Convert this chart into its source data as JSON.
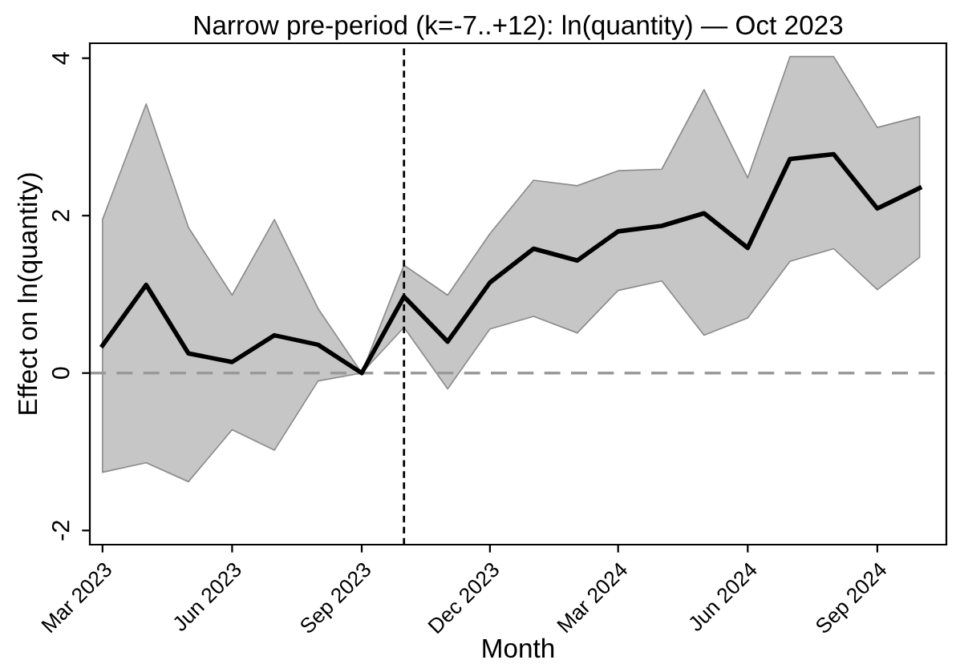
{
  "chart_data": {
    "type": "line",
    "title": "Narrow pre-period (k=-7..+12): ln(quantity) — Oct 2023",
    "xlabel": "Month",
    "ylabel": "Effect on ln(quantity)",
    "x": [
      "2023-03",
      "2023-04",
      "2023-05",
      "2023-06",
      "2023-07",
      "2023-08",
      "2023-09",
      "2023-10",
      "2023-11",
      "2023-12",
      "2024-01",
      "2024-02",
      "2024-03",
      "2024-04",
      "2024-05",
      "2024-06",
      "2024-07",
      "2024-08",
      "2024-09",
      "2024-10"
    ],
    "series": [
      {
        "color": "#000000",
        "values": [
          0.35,
          1.12,
          0.25,
          0.14,
          0.48,
          0.36,
          0,
          0.97,
          0.4,
          1.15,
          1.58,
          1.43,
          1.8,
          1.87,
          2.03,
          1.59,
          2.72,
          2.78,
          2.09,
          2.35
        ],
        "lower": [
          -1.26,
          -1.14,
          -1.38,
          -0.72,
          -0.98,
          -0.1,
          0,
          0.58,
          -0.2,
          0.56,
          0.72,
          0.51,
          1.05,
          1.17,
          0.48,
          0.7,
          1.42,
          1.58,
          1.06,
          1.47
        ],
        "upper": [
          1.95,
          3.42,
          1.85,
          0.99,
          1.95,
          0.82,
          0,
          1.37,
          0.99,
          1.77,
          2.45,
          2.38,
          2.57,
          2.59,
          3.6,
          2.48,
          4.02,
          4.02,
          3.12,
          3.26
        ]
      }
    ],
    "xlim": [
      "2023-02-20",
      "2024-10-20"
    ],
    "xticks": [
      {
        "value": "2023-03",
        "label": "Mar 2023"
      },
      {
        "value": "2023-06",
        "label": "Jun 2023"
      },
      {
        "value": "2023-09",
        "label": "Sep 2023"
      },
      {
        "value": "2023-12",
        "label": "Dec 2023"
      },
      {
        "value": "2024-03",
        "label": "Mar 2024"
      },
      {
        "value": "2024-06",
        "label": "Jun 2024"
      },
      {
        "value": "2024-09",
        "label": "Sep 2024"
      }
    ],
    "ylim": [
      -2.18,
      4.19
    ],
    "yticks": [
      -2,
      0,
      2,
      4
    ],
    "ref_lines": [
      {
        "axis": "y",
        "value": 0,
        "color": "#999999",
        "line_style": "dashed"
      },
      {
        "axis": "x",
        "value": "2023-10",
        "color": "#000000",
        "line_style": "dotted"
      }
    ],
    "grid": false,
    "legend": false,
    "marker": "none",
    "line_style": "solid"
  }
}
